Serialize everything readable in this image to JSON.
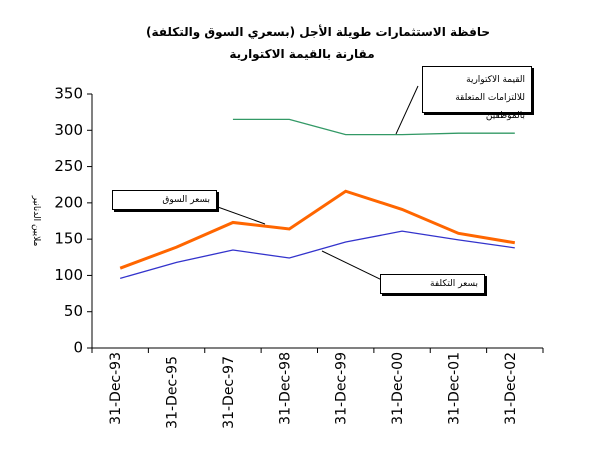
{
  "chart_data": {
    "type": "line",
    "title": "حافظة الاستثمارات طويلة الأجل (بسعري السوق والتكلفة)",
    "subtitle": "مقارنة بالقيمة الاكتوارية",
    "y_label": "ملايين الدنانير",
    "categories": [
      "31-Dec-93",
      "31-Dec-95",
      "31-Dec-97",
      "31-Dec-98",
      "31-Dec-99",
      "31-Dec-00",
      "31-Dec-01",
      "31-Dec-02"
    ],
    "series": [
      {
        "name": "بسعر السوق",
        "color": "#ff6600",
        "values": [
          110,
          139,
          173,
          164,
          216,
          191,
          158,
          145
        ]
      },
      {
        "name": "بسعر التكلفة",
        "color": "#3333cc",
        "values": [
          96,
          118,
          135,
          124,
          146,
          161,
          149,
          138
        ]
      },
      {
        "name": "القيمة الاكتوارية للالتزامات المتعلقة بالموظفين",
        "color": "#339966",
        "values": [
          null,
          null,
          315,
          315,
          294,
          294,
          296,
          296
        ]
      }
    ],
    "ylim": [
      0,
      350
    ],
    "yticks": [
      0,
      50,
      100,
      150,
      200,
      250,
      300,
      350
    ],
    "grid": false
  }
}
